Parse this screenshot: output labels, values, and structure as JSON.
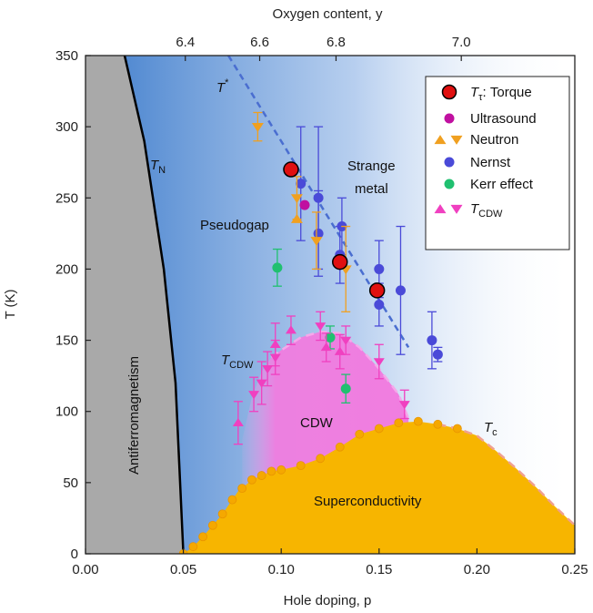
{
  "chart_data": {
    "type": "scatter",
    "xlabel": "Hole doping, p",
    "x2label": "Oxygen content, y",
    "ylabel": "T (K)",
    "xlim": [
      0,
      0.25
    ],
    "ylim": [
      0,
      350
    ],
    "x_ticks": [
      0.0,
      0.05,
      0.1,
      0.15,
      0.2,
      0.25
    ],
    "x_tick_labels": [
      "0.00",
      "0.05",
      "0.10",
      "0.15",
      "0.20",
      "0.25"
    ],
    "y_ticks": [
      0,
      50,
      100,
      150,
      200,
      250,
      300,
      350
    ],
    "y_tick_labels": [
      "0",
      "50",
      "100",
      "150",
      "200",
      "250",
      "300",
      "350"
    ],
    "top_axis": {
      "ticks": [
        {
          "label": "6.4",
          "p": 0.051
        },
        {
          "label": "6.6",
          "p": 0.089
        },
        {
          "label": "6.8",
          "p": 0.128
        },
        {
          "label": "7.0",
          "p": 0.192
        }
      ]
    },
    "regions": {
      "antiferro": "Antiferromagnetism",
      "pseudogap": "Pseudogap",
      "strange_line1": "Strange",
      "strange_line2": "metal",
      "cdw": "CDW",
      "sc": "Superconductivity"
    },
    "curve_labels": {
      "tn_main": "T",
      "tn_sub": "N",
      "tstar_main": "T",
      "tstar_sup": "*",
      "tcdw_main": "T",
      "tcdw_sub": "CDW",
      "tc_main": "T",
      "tc_sub": "c"
    },
    "legend": {
      "torque_main": "T",
      "torque_sub": "τ",
      "torque_rest": ": Torque",
      "ultrasound": "Ultrasound",
      "neutron": "Neutron",
      "nernst": "Nernst",
      "kerr": "Kerr effect",
      "tcdw_main": "T",
      "tcdw_sub": "CDW"
    },
    "colors": {
      "antiferro": "#a9a9a9",
      "pseudogap_blue": "#4a86d0",
      "cdw": "#f07de0",
      "sc": "#f7b500",
      "torque": "#e01010",
      "ultrasound": "#c010a0",
      "neutron": "#f0a020",
      "nernst": "#4a4ad8",
      "kerr": "#20c070",
      "tcdw": "#f040c0"
    },
    "tn_line": [
      [
        0.02,
        350
      ],
      [
        0.03,
        290
      ],
      [
        0.04,
        200
      ],
      [
        0.046,
        120
      ],
      [
        0.05,
        0
      ]
    ],
    "tstar_line": [
      [
        0.073,
        350
      ],
      [
        0.165,
        145
      ]
    ],
    "tc_dome": [
      [
        0.05,
        0
      ],
      [
        0.055,
        5
      ],
      [
        0.06,
        12
      ],
      [
        0.065,
        20
      ],
      [
        0.07,
        28
      ],
      [
        0.075,
        38
      ],
      [
        0.078,
        44
      ],
      [
        0.08,
        46
      ],
      [
        0.085,
        52
      ],
      [
        0.09,
        55
      ],
      [
        0.095,
        58
      ],
      [
        0.1,
        59
      ],
      [
        0.11,
        62
      ],
      [
        0.12,
        67
      ],
      [
        0.13,
        75
      ],
      [
        0.14,
        84
      ],
      [
        0.15,
        88
      ],
      [
        0.16,
        92
      ],
      [
        0.17,
        93
      ],
      [
        0.18,
        91
      ],
      [
        0.19,
        88
      ],
      [
        0.2,
        83
      ],
      [
        0.21,
        72
      ],
      [
        0.22,
        60
      ],
      [
        0.23,
        47
      ],
      [
        0.24,
        33
      ],
      [
        0.25,
        20
      ]
    ],
    "tc_points": [
      [
        0.05,
        0
      ],
      [
        0.055,
        5
      ],
      [
        0.06,
        12
      ],
      [
        0.065,
        20
      ],
      [
        0.07,
        28
      ],
      [
        0.075,
        38
      ],
      [
        0.08,
        46
      ],
      [
        0.085,
        52
      ],
      [
        0.09,
        55
      ],
      [
        0.095,
        58
      ],
      [
        0.1,
        59
      ],
      [
        0.11,
        62
      ],
      [
        0.12,
        67
      ],
      [
        0.13,
        75
      ],
      [
        0.14,
        84
      ],
      [
        0.15,
        88
      ],
      [
        0.16,
        92
      ],
      [
        0.17,
        93
      ],
      [
        0.18,
        91
      ],
      [
        0.19,
        88
      ]
    ],
    "cdw_dome": [
      [
        0.08,
        80
      ],
      [
        0.085,
        110
      ],
      [
        0.09,
        128
      ],
      [
        0.095,
        138
      ],
      [
        0.1,
        143
      ],
      [
        0.11,
        152
      ],
      [
        0.12,
        156
      ],
      [
        0.13,
        155
      ],
      [
        0.14,
        145
      ],
      [
        0.15,
        130
      ],
      [
        0.16,
        112
      ],
      [
        0.165,
        95
      ]
    ],
    "torque": [
      {
        "x": 0.105,
        "y": 270
      },
      {
        "x": 0.13,
        "y": 205
      },
      {
        "x": 0.149,
        "y": 185
      }
    ],
    "ultrasound": [
      {
        "x": 0.112,
        "y": 245
      }
    ],
    "neutron_up": [
      {
        "x": 0.108,
        "y": 235
      }
    ],
    "neutron_down": [
      {
        "x": 0.088,
        "y": 300,
        "err": 10
      },
      {
        "x": 0.108,
        "y": 250,
        "err": 15
      },
      {
        "x": 0.118,
        "y": 220,
        "err": 20
      },
      {
        "x": 0.133,
        "y": 200,
        "err": 30
      }
    ],
    "nernst": [
      {
        "x": 0.11,
        "y": 260,
        "err": 40
      },
      {
        "x": 0.119,
        "y": 250,
        "err": 50
      },
      {
        "x": 0.119,
        "y": 225,
        "err": 30
      },
      {
        "x": 0.131,
        "y": 230,
        "err": 20
      },
      {
        "x": 0.13,
        "y": 210,
        "err": 20
      },
      {
        "x": 0.15,
        "y": 200,
        "err": 20
      },
      {
        "x": 0.15,
        "y": 175,
        "err": 15
      },
      {
        "x": 0.161,
        "y": 185,
        "err": 45
      },
      {
        "x": 0.177,
        "y": 150,
        "err": 20
      },
      {
        "x": 0.18,
        "y": 140,
        "err": 5
      }
    ],
    "kerr": [
      {
        "x": 0.098,
        "y": 201,
        "err": 13
      },
      {
        "x": 0.125,
        "y": 152,
        "err": 8
      },
      {
        "x": 0.133,
        "y": 116,
        "err": 10
      }
    ],
    "tcdw_up": [
      {
        "x": 0.078,
        "y": 92,
        "err": 15
      },
      {
        "x": 0.097,
        "y": 147,
        "err": 15
      },
      {
        "x": 0.105,
        "y": 157,
        "err": 10
      },
      {
        "x": 0.123,
        "y": 145,
        "err": 10
      },
      {
        "x": 0.13,
        "y": 142,
        "err": 12
      }
    ],
    "tcdw_down": [
      {
        "x": 0.086,
        "y": 112,
        "err": 12
      },
      {
        "x": 0.09,
        "y": 120,
        "err": 15
      },
      {
        "x": 0.093,
        "y": 130,
        "err": 12
      },
      {
        "x": 0.097,
        "y": 138,
        "err": 12
      },
      {
        "x": 0.12,
        "y": 160,
        "err": 10
      },
      {
        "x": 0.133,
        "y": 150,
        "err": 10
      },
      {
        "x": 0.15,
        "y": 135,
        "err": 12
      },
      {
        "x": 0.163,
        "y": 105,
        "err": 10
      }
    ]
  }
}
